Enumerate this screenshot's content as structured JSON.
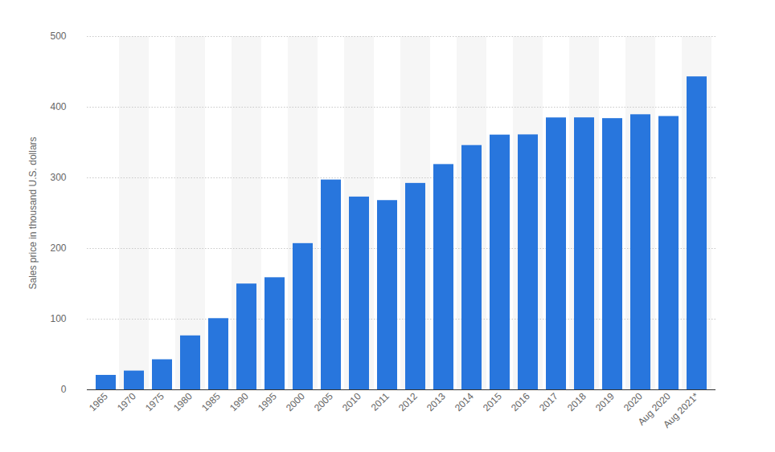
{
  "chart_data": {
    "type": "bar",
    "y_label": "Sales price in thousand U.S. dollars",
    "categories": [
      "1965",
      "1970",
      "1975",
      "1980",
      "1985",
      "1990",
      "1995",
      "2000",
      "2005",
      "2010",
      "2011",
      "2012",
      "2013",
      "2014",
      "2015",
      "2016",
      "2017",
      "2018",
      "2019",
      "2020",
      "Aug 2020",
      "Aug 2021*"
    ],
    "values": [
      20.5,
      26.6,
      42.6,
      76.4,
      100.8,
      149.8,
      158.7,
      207.0,
      297.0,
      272.9,
      267.9,
      292.2,
      318.9,
      345.8,
      360.6,
      360.9,
      384.9,
      385.0,
      383.9,
      389.4,
      386.9,
      443.0
    ],
    "color": "#2876dd",
    "ylim": [
      0,
      500
    ],
    "yticks": [
      0,
      100,
      200,
      300,
      400,
      500
    ],
    "grid": true
  }
}
